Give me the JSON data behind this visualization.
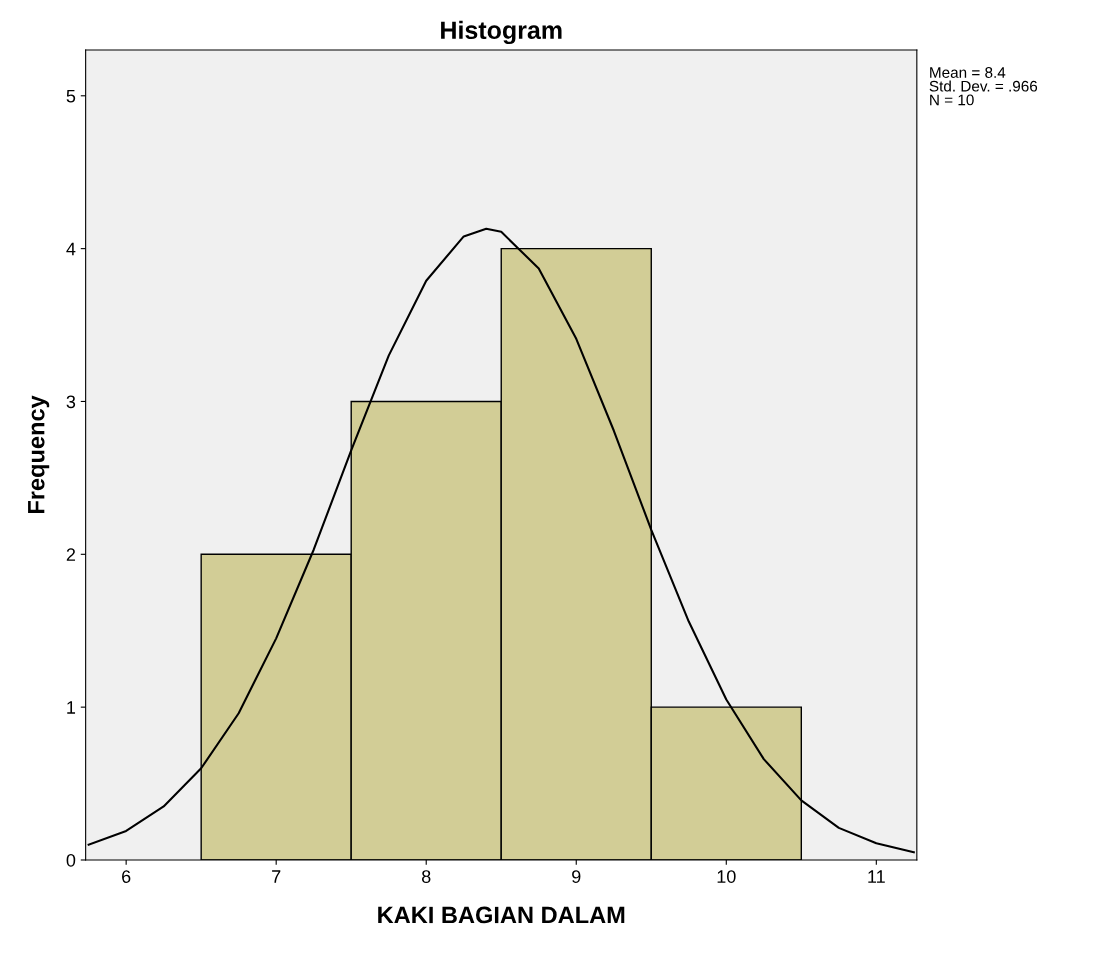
{
  "chart_data": {
    "type": "histogram",
    "title": "Histogram",
    "xlabel": "KAKI BAGIAN DALAM",
    "ylabel": "Frequency",
    "bins": [
      6.5,
      7.5,
      8.5,
      9.5,
      10.5
    ],
    "values": [
      2,
      3,
      4,
      1
    ],
    "color": "#d2cd96",
    "series": [
      {
        "type": "line",
        "color": "#000000",
        "x": [
          5.75,
          6.0,
          6.25,
          6.5,
          6.75,
          7.0,
          7.25,
          7.5,
          7.75,
          8.0,
          8.25,
          8.4,
          8.5,
          8.75,
          9.0,
          9.25,
          9.5,
          9.75,
          10.0,
          10.25,
          10.5,
          10.75,
          11.0,
          11.25
        ],
        "values": [
          0.1,
          0.19,
          0.35,
          0.6,
          0.96,
          1.45,
          2.03,
          2.68,
          3.3,
          3.79,
          4.08,
          4.13,
          4.11,
          3.87,
          3.41,
          2.81,
          2.16,
          1.56,
          1.05,
          0.66,
          0.39,
          0.21,
          0.11,
          0.05
        ]
      }
    ],
    "xlim": [
      5.73,
      11.27
    ],
    "ylim": [
      0,
      5.3
    ],
    "xticks": [
      6,
      7,
      8,
      9,
      10,
      11
    ],
    "yticks": [
      0,
      1,
      2,
      3,
      4,
      5
    ],
    "grid": false,
    "annotations": [
      "Mean = 8.4\nStd. Dev. = .966\nN = 10"
    ]
  }
}
